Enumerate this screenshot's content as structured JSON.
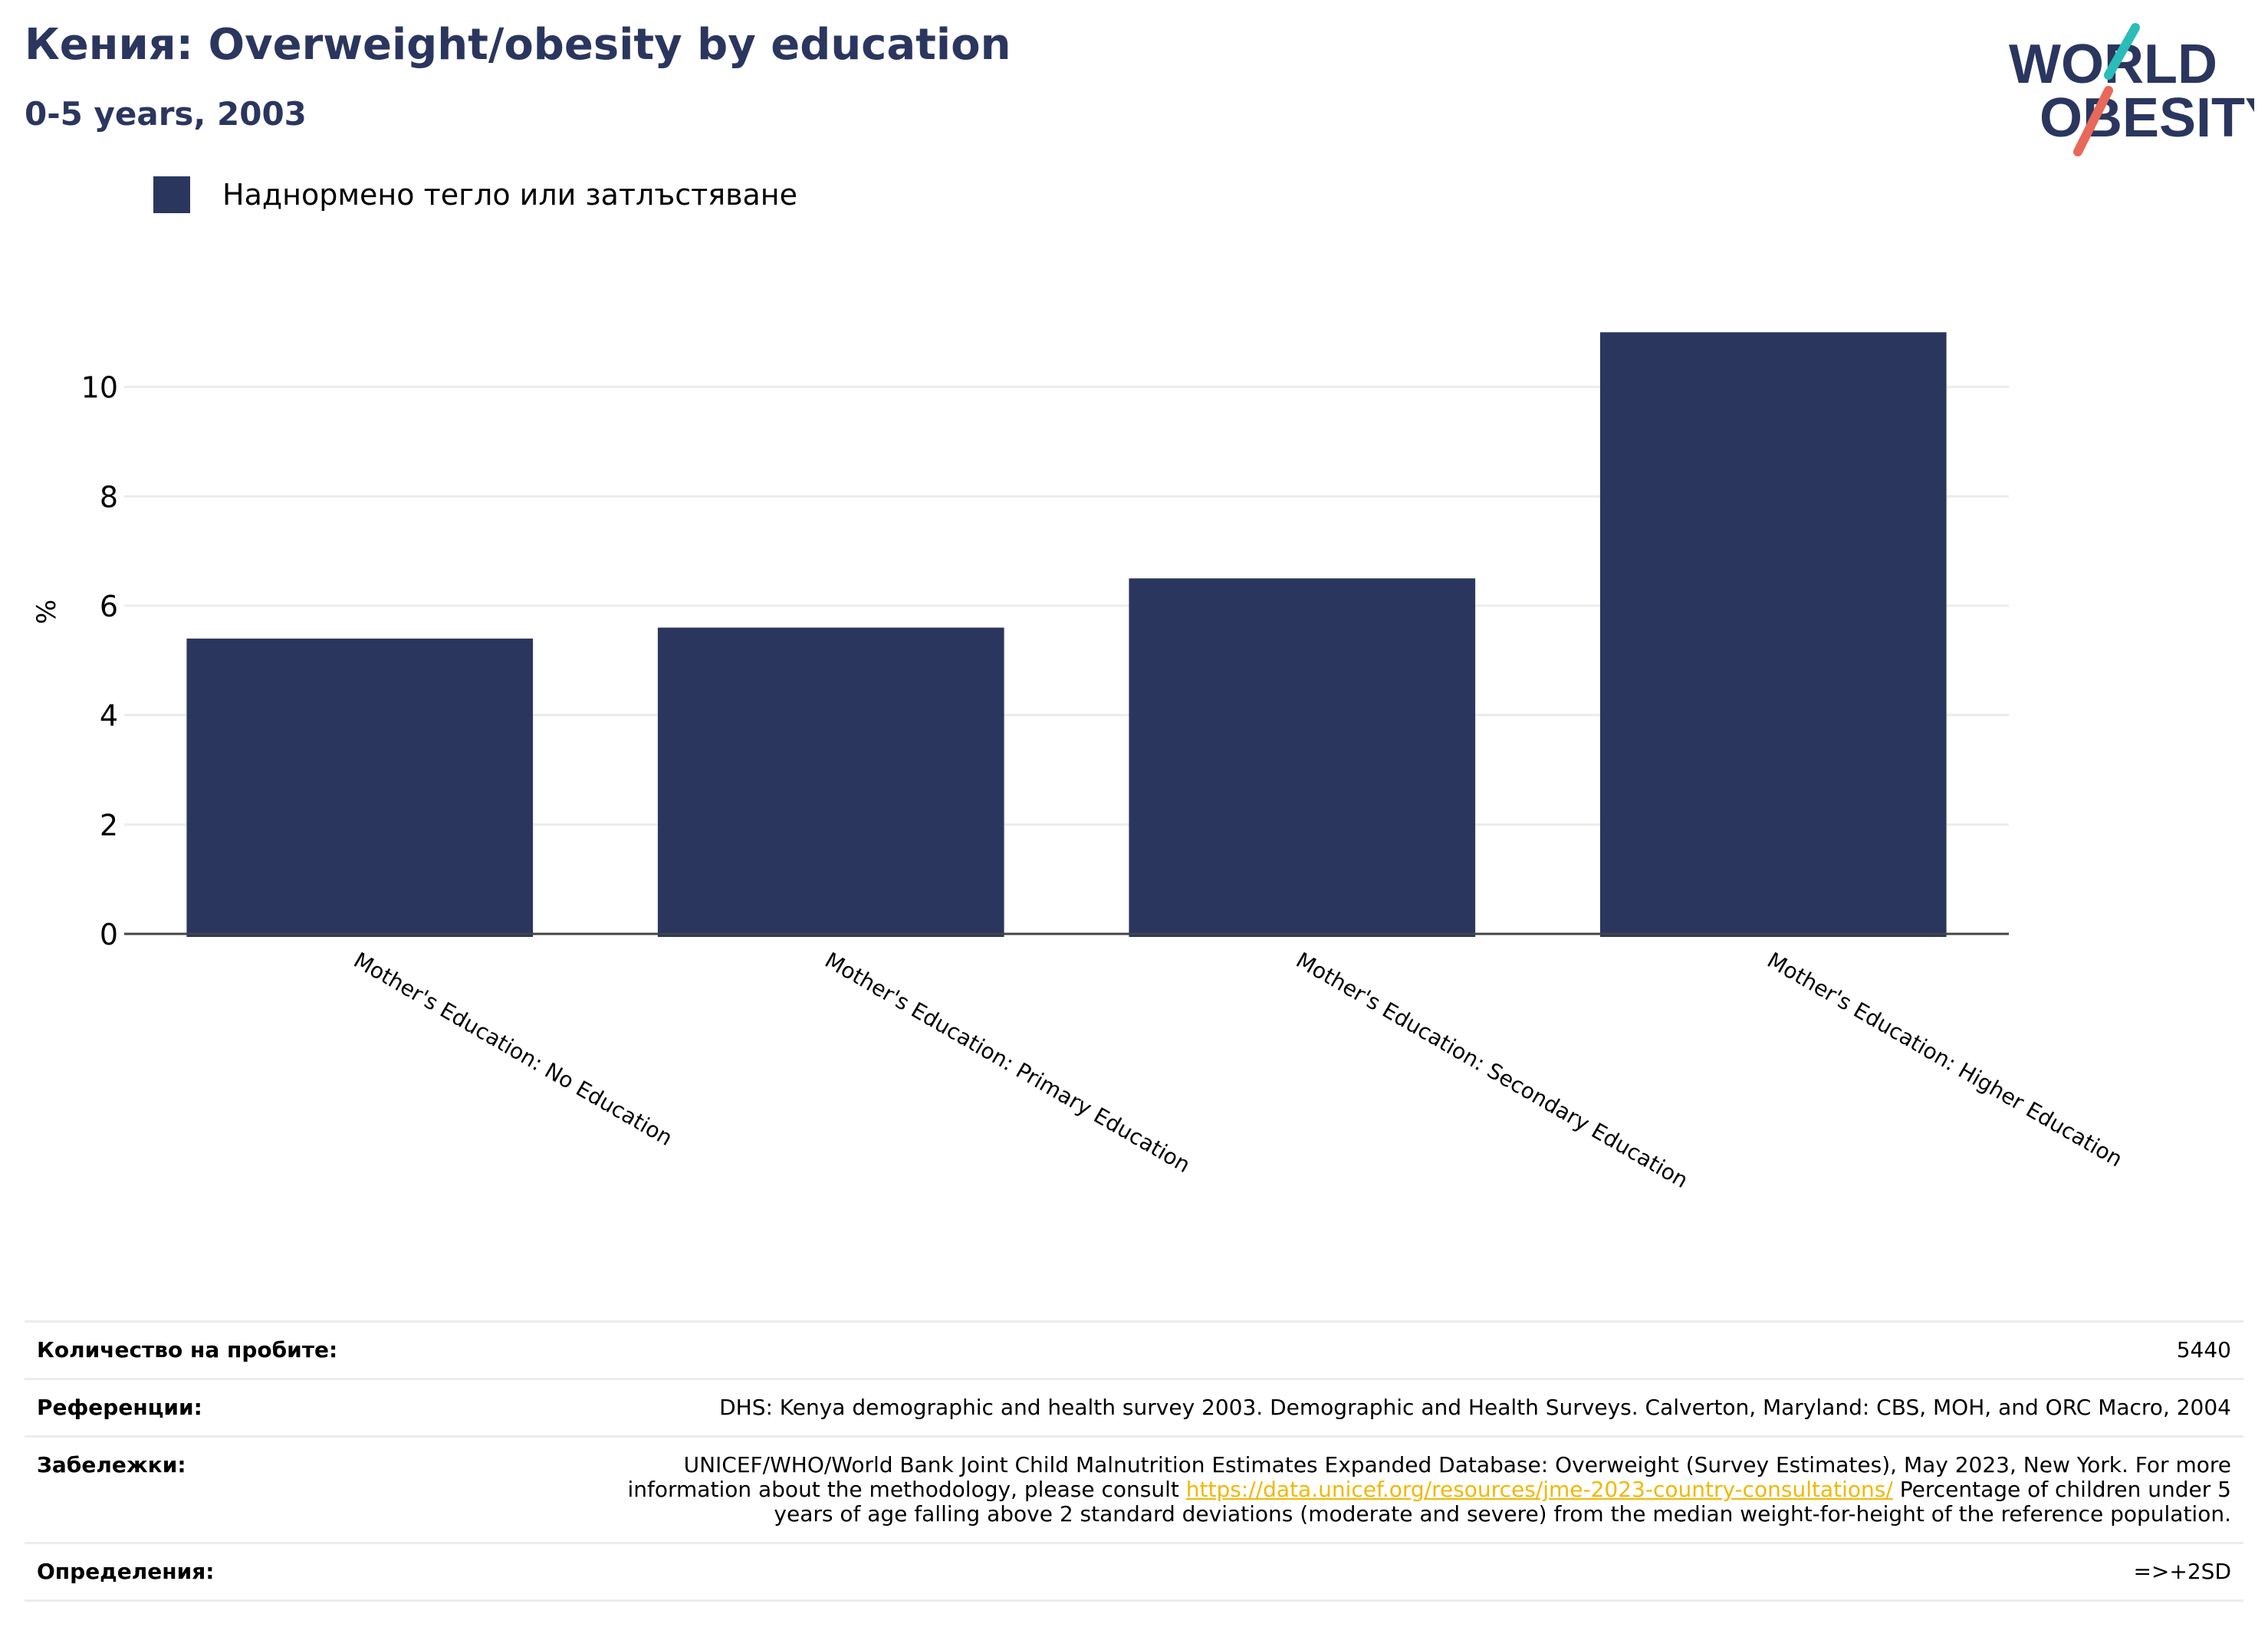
{
  "header": {
    "title": "Кения: Overweight/obesity by education",
    "subtitle": "0-5 years, 2003"
  },
  "logo": {
    "line1": "WORLD",
    "line2": "OBESITY"
  },
  "colors": {
    "bar": "#2b365f",
    "title": "#2b365f",
    "link": "#f2b705",
    "logo_teal": "#2bbcb9",
    "logo_coral": "#e8685a"
  },
  "legend": {
    "label": "Наднормено тегло или затлъстяване"
  },
  "chart_data": {
    "type": "bar",
    "categories": [
      "Mother's Education: No Education",
      "Mother's Education: Primary Education",
      "Mother's Education: Secondary Education",
      "Mother's Education: Higher Education"
    ],
    "series": [
      {
        "name": "Наднормено тегло или затлъстяване",
        "values": [
          5.4,
          5.6,
          6.5,
          11.0
        ]
      }
    ],
    "ylabel": "%",
    "xlabel": "",
    "ylim": [
      0,
      12
    ],
    "yticks": [
      0,
      2,
      4,
      6,
      8,
      10
    ],
    "grid": true,
    "legend_position": "top-left"
  },
  "info": {
    "sample_label": "Количество на пробите:",
    "sample_value": "5440",
    "refs_label": "Референции:",
    "refs_value": "DHS: Kenya demographic and health survey 2003. Demographic and Health Surveys. Calverton, Maryland: CBS, MOH, and ORC Macro, 2004",
    "notes_label": "Забележки:",
    "notes_before": "UNICEF/WHO/World Bank Joint Child Malnutrition Estimates Expanded Database: Overweight (Survey Estimates), May 2023, New York. For more information about the methodology, please consult ",
    "notes_link": "https://data.unicef.org/resources/jme-2023-country-consultations/",
    "notes_after": " Percentage of children under 5 years of age falling above 2 standard deviations (moderate and severe) from the median weight-for-height of the reference population.",
    "defs_label": "Определения:",
    "defs_value": "=>+2SD"
  }
}
